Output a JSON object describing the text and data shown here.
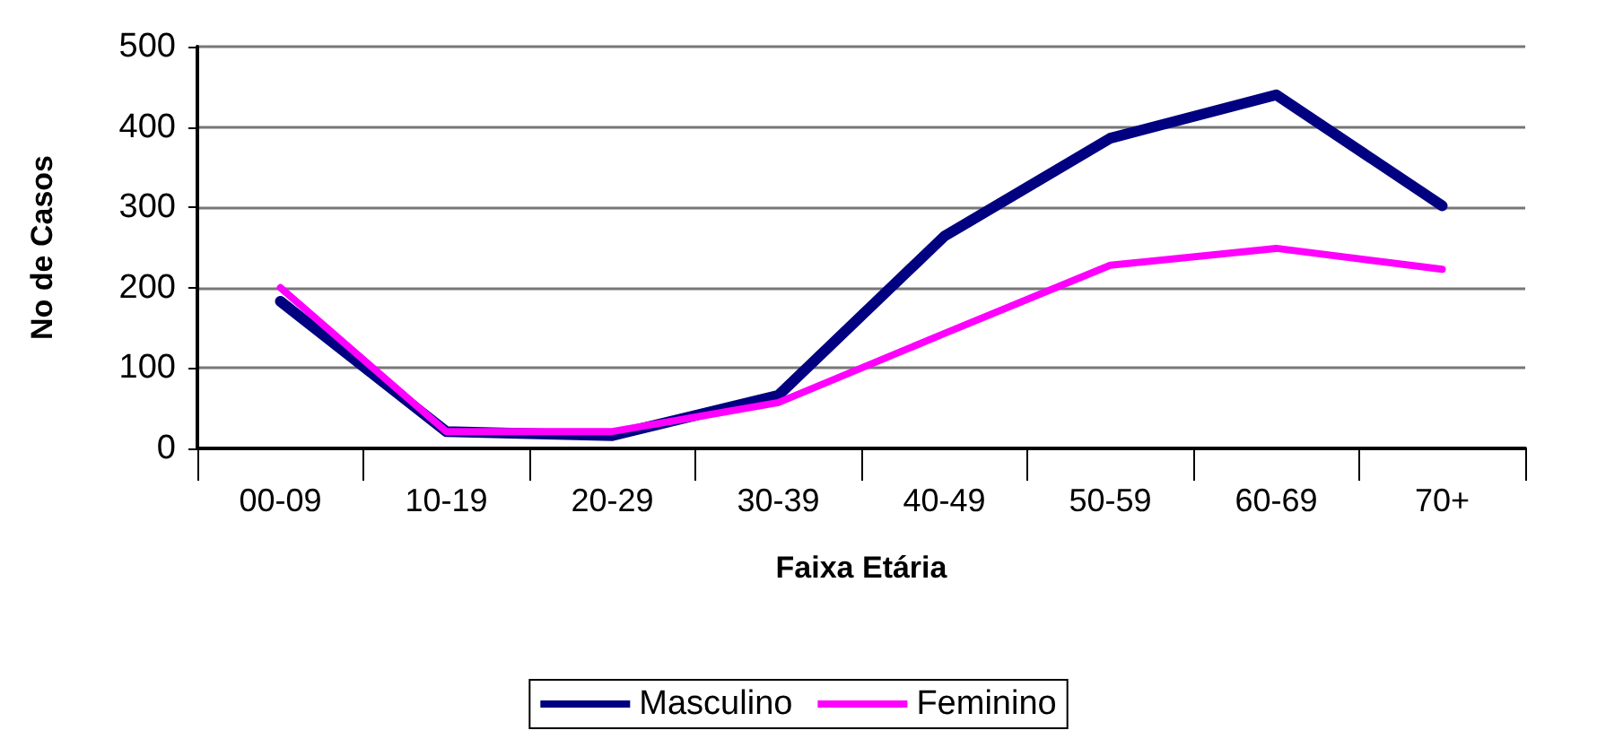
{
  "chart_data": {
    "type": "line",
    "xlabel": "Faixa Etária",
    "ylabel": "No de Casos",
    "categories": [
      "00-09",
      "10-19",
      "20-29",
      "30-39",
      "40-49",
      "50-59",
      "60-69",
      "70+"
    ],
    "series": [
      {
        "name": "Masculino",
        "color": "#000080",
        "values": [
          183,
          21,
          16,
          66,
          264,
          386,
          440,
          302
        ]
      },
      {
        "name": "Feminino",
        "color": "#ff00ff",
        "values": [
          200,
          21,
          21,
          57,
          143,
          228,
          249,
          223
        ]
      }
    ],
    "ylim": [
      0,
      500
    ],
    "yticks": [
      0,
      100,
      200,
      300,
      400,
      500
    ],
    "grid": "y",
    "legend": "bottom",
    "marker": "none",
    "line_style": "solid"
  }
}
